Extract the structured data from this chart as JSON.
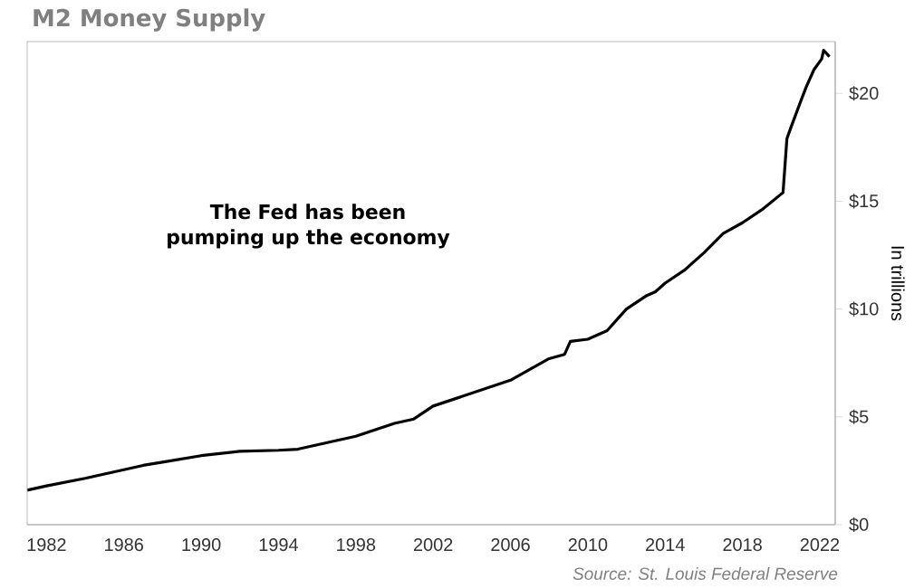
{
  "chart_data": {
    "type": "line",
    "title": "M2 Money Supply",
    "ylabel": "In trillions",
    "annotations": [
      "The Fed has been pumping up the economy",
      "Source: St. Louis Federal Reserve"
    ],
    "x": [
      1981,
      1982,
      1984,
      1986,
      1987,
      1988,
      1990,
      1992,
      1994,
      1995,
      1996,
      1998,
      2000,
      2001,
      2002,
      2004,
      2006,
      2007,
      2008,
      2008.8,
      2009.1,
      2010,
      2011,
      2011.6,
      2012,
      2013,
      2013.5,
      2014,
      2015,
      2016,
      2017,
      2018,
      2019,
      2020.1,
      2020.3,
      2020.5,
      2021,
      2021.3,
      2021.7,
      2022.1,
      2022.2,
      2022.5
    ],
    "values": [
      1.6,
      1.8,
      2.15,
      2.55,
      2.75,
      2.9,
      3.2,
      3.4,
      3.45,
      3.5,
      3.7,
      4.1,
      4.7,
      4.9,
      5.5,
      6.1,
      6.7,
      7.2,
      7.7,
      7.9,
      8.5,
      8.6,
      9.0,
      9.6,
      10.0,
      10.6,
      10.8,
      11.2,
      11.8,
      12.6,
      13.5,
      14.0,
      14.6,
      15.4,
      17.9,
      18.4,
      19.6,
      20.3,
      21.1,
      21.6,
      22.0,
      21.7
    ],
    "color": "#000000",
    "line_style": "solid",
    "xlim": [
      1981,
      2022.8
    ],
    "ylim": [
      0,
      22.4
    ],
    "xticks": [
      1982,
      1986,
      1990,
      1994,
      1998,
      2002,
      2006,
      2010,
      2014,
      2018,
      2022
    ],
    "yticks": [
      {
        "value": 0,
        "label": "$0"
      },
      {
        "value": 5,
        "label": "$5"
      },
      {
        "value": 10,
        "label": "$10"
      },
      {
        "value": 15,
        "label": "$15"
      },
      {
        "value": 20,
        "label": "$20"
      }
    ]
  }
}
